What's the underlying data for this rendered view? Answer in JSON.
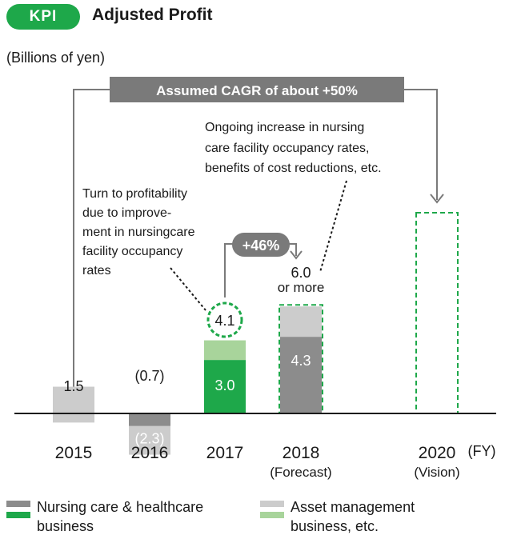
{
  "header": {
    "badge": "KPI",
    "title": "Adjusted Profit"
  },
  "unit_label": "(Billions of yen)",
  "cagr_label": "Assumed CAGR of about +50%",
  "annotations": {
    "ongoing": [
      "Ongoing increase in nursing",
      "care facility occupancy rates,",
      "benefits of cost reductions, etc."
    ],
    "turn": [
      "Turn to profitability",
      "due to improve-",
      "ment in nursingcare",
      "facility occupancy",
      "rates"
    ],
    "growth": "+46%"
  },
  "colors": {
    "nursing_dark": "#8c8c8c",
    "asset_light": "#cccccc",
    "nursing_green": "#1ea84a",
    "asset_green": "#a8d49b",
    "accent": "#1ea84a",
    "banner": "#7a7a7a"
  },
  "chart_data": {
    "type": "bar",
    "stacked": true,
    "categories": [
      "2015",
      "2016",
      "2017",
      "2018",
      "2020"
    ],
    "category_notes": [
      "",
      "",
      "",
      "(Forecast)",
      "(Vision)"
    ],
    "x_unit": "(FY)",
    "ylabel": "(Billions of yen)",
    "series": [
      {
        "name": "Nursing care & healthcare business",
        "values": [
          -0.5,
          -2.3,
          3.0,
          4.3,
          null
        ]
      },
      {
        "name": "Asset management business, etc.",
        "values": [
          2.0,
          1.6,
          1.1,
          1.7,
          null
        ]
      }
    ],
    "totals": [
      1.5,
      -0.7,
      4.1,
      6.0,
      null
    ],
    "total_labels": [
      "1.5",
      "(0.7)",
      "4.1",
      "6.0\nor more",
      ""
    ],
    "segment_labels": [
      "",
      "(2.3)",
      "3.0",
      "4.3",
      ""
    ],
    "legend": [
      {
        "lines": [
          "Nursing care & healthcare",
          "business"
        ],
        "colors": [
          "#8c8c8c",
          "#1ea84a"
        ]
      },
      {
        "lines": [
          "Asset management",
          "business, etc."
        ],
        "colors": [
          "#cccccc",
          "#a8d49b"
        ]
      }
    ]
  }
}
